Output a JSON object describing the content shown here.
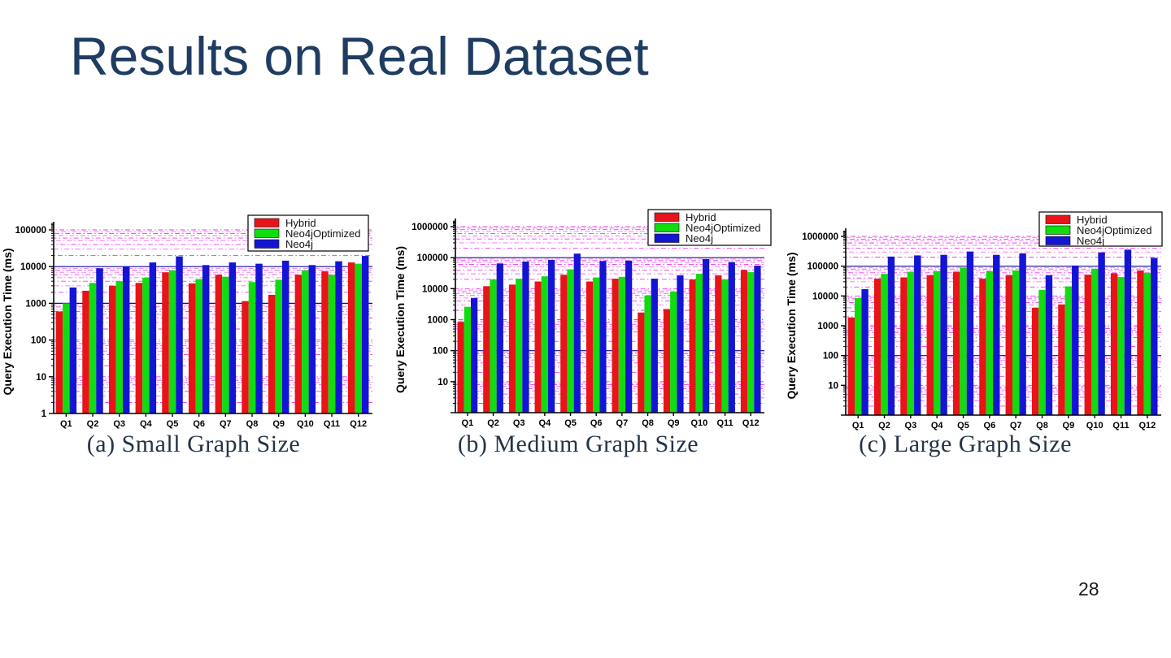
{
  "slide": {
    "title": "Results on Real Dataset",
    "page_number": "28"
  },
  "chart_data": [
    {
      "type": "bar",
      "caption": "(a) Small Graph Size",
      "ylabel": "Query Execution Time (ms)",
      "yscale": "log",
      "ylim": [
        1,
        100000
      ],
      "yticks": [
        "1",
        "10",
        "100",
        "1000",
        "10000",
        "100000"
      ],
      "grid": "log minor gridlines, magenta dash-dot",
      "legend_position": "top-right",
      "categories": [
        "Q1",
        "Q2",
        "Q3",
        "Q4",
        "Q5",
        "Q6",
        "Q7",
        "Q8",
        "Q9",
        "Q10",
        "Q11",
        "Q12"
      ],
      "series": [
        {
          "name": "Hybrid",
          "color": "#e81417",
          "values": [
            600,
            2200,
            3000,
            3600,
            7000,
            3500,
            6000,
            1150,
            1700,
            6000,
            7500,
            13000
          ]
        },
        {
          "name": "Neo4jOptimized",
          "color": "#10dc10",
          "values": [
            1000,
            3600,
            4000,
            5000,
            8000,
            4600,
            5300,
            3800,
            4400,
            8000,
            6000,
            12000
          ]
        },
        {
          "name": "Neo4j",
          "color": "#1414d4",
          "values": [
            2700,
            9000,
            10000,
            13000,
            19000,
            11000,
            13000,
            12000,
            14500,
            11000,
            14000,
            19500
          ]
        }
      ]
    },
    {
      "type": "bar",
      "caption": "(b) Medium Graph Size",
      "ylabel": "Query Execution Time (ms)",
      "yscale": "log",
      "ylim": [
        1,
        1000000
      ],
      "yticks": [
        "",
        "10",
        "100",
        "1000",
        "10000",
        "100000",
        "1000000"
      ],
      "grid": "log minor gridlines, magenta dash-dot",
      "legend_position": "top-right",
      "categories": [
        "Q1",
        "Q2",
        "Q3",
        "Q4",
        "Q5",
        "Q6",
        "Q7",
        "Q8",
        "Q9",
        "Q10",
        "Q11",
        "Q12"
      ],
      "series": [
        {
          "name": "Hybrid",
          "color": "#e81417",
          "values": [
            850,
            12000,
            13500,
            17000,
            28000,
            17000,
            21000,
            1700,
            2200,
            20000,
            27000,
            40000
          ]
        },
        {
          "name": "Neo4jOptimized",
          "color": "#10dc10",
          "values": [
            2600,
            20000,
            21000,
            25000,
            42000,
            23000,
            24000,
            6000,
            8000,
            30000,
            20000,
            34000
          ]
        },
        {
          "name": "Neo4j",
          "color": "#1414d4",
          "values": [
            5000,
            65000,
            75000,
            85000,
            135000,
            78000,
            80000,
            21000,
            27000,
            90000,
            72000,
            55000
          ]
        }
      ]
    },
    {
      "type": "bar",
      "caption": "(c) Large Graph Size",
      "ylabel": "Query Execution Time (ms)",
      "yscale": "log",
      "ylim": [
        1,
        1000000
      ],
      "yticks": [
        "",
        "10",
        "100",
        "1000",
        "10000",
        "100000",
        "1000000"
      ],
      "grid": "log minor gridlines, magenta dash-dot",
      "legend_position": "top-right",
      "categories": [
        "Q1",
        "Q2",
        "Q3",
        "Q4",
        "Q5",
        "Q6",
        "Q7",
        "Q8",
        "Q9",
        "Q10",
        "Q11",
        "Q12"
      ],
      "series": [
        {
          "name": "Hybrid",
          "color": "#e81417",
          "values": [
            1900,
            38000,
            42000,
            50000,
            65000,
            38000,
            50000,
            4000,
            5200,
            52000,
            58000,
            72000
          ]
        },
        {
          "name": "Neo4jOptimized",
          "color": "#10dc10",
          "values": [
            8500,
            55000,
            65000,
            68000,
            90000,
            68000,
            72000,
            16000,
            21000,
            82000,
            43000,
            60000
          ]
        },
        {
          "name": "Neo4j",
          "color": "#1414d4",
          "values": [
            17000,
            210000,
            230000,
            240000,
            310000,
            240000,
            270000,
            50000,
            105000,
            290000,
            360000,
            190000
          ]
        }
      ]
    }
  ],
  "style": {
    "grid_minor_color": "#ee22ee",
    "grid_major_color": "#000099",
    "axis_color": "#000000"
  }
}
